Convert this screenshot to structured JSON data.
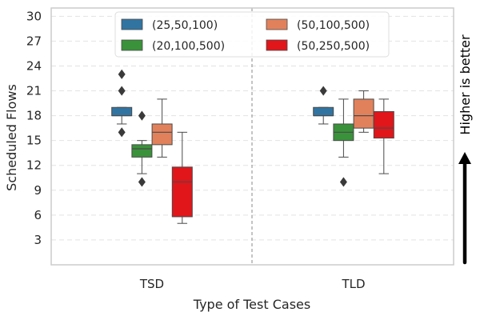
{
  "chart_data": {
    "type": "boxplot",
    "title": "",
    "xlabel": "Type of Test Cases",
    "ylabel": "Scheduled Flows",
    "ylim": [
      0,
      31
    ],
    "yticks": [
      3,
      6,
      9,
      12,
      15,
      18,
      21,
      24,
      27,
      30
    ],
    "grid": true,
    "legend_position": "top-center",
    "annotation": "Higher is better",
    "categories": [
      "TSD",
      "TLD"
    ],
    "series": [
      {
        "name": "(25,50,100)",
        "color": "#3274a1",
        "boxes": [
          {
            "category": "TSD",
            "whisker_low": 17,
            "q1": 18,
            "median": 18,
            "q3": 19,
            "whisker_high": 19,
            "outliers": [
              16,
              21,
              23
            ]
          },
          {
            "category": "TLD",
            "whisker_low": 17,
            "q1": 18,
            "median": 18,
            "q3": 19,
            "whisker_high": 19,
            "outliers": [
              21
            ]
          }
        ]
      },
      {
        "name": "(20,100,500)",
        "color": "#3a923a",
        "boxes": [
          {
            "category": "TSD",
            "whisker_low": 11,
            "q1": 13,
            "median": 14,
            "q3": 14.5,
            "whisker_high": 15,
            "outliers": [
              10,
              18
            ]
          },
          {
            "category": "TLD",
            "whisker_low": 13,
            "q1": 15,
            "median": 16,
            "q3": 17,
            "whisker_high": 20,
            "outliers": [
              10
            ]
          }
        ]
      },
      {
        "name": "(50,100,500)",
        "color": "#e1815c",
        "boxes": [
          {
            "category": "TSD",
            "whisker_low": 13,
            "q1": 14.5,
            "median": 16,
            "q3": 17,
            "whisker_high": 20,
            "outliers": []
          },
          {
            "category": "TLD",
            "whisker_low": 16,
            "q1": 16.5,
            "median": 18,
            "q3": 20,
            "whisker_high": 21,
            "outliers": []
          }
        ]
      },
      {
        "name": "(50,250,500)",
        "color": "#e0161b",
        "boxes": [
          {
            "category": "TSD",
            "whisker_low": 5,
            "q1": 5.8,
            "median": 10,
            "q3": 11.8,
            "whisker_high": 16,
            "outliers": []
          },
          {
            "category": "TLD",
            "whisker_low": 11,
            "q1": 15.3,
            "median": 16.5,
            "q3": 18.5,
            "whisker_high": 20,
            "outliers": []
          }
        ]
      }
    ]
  }
}
